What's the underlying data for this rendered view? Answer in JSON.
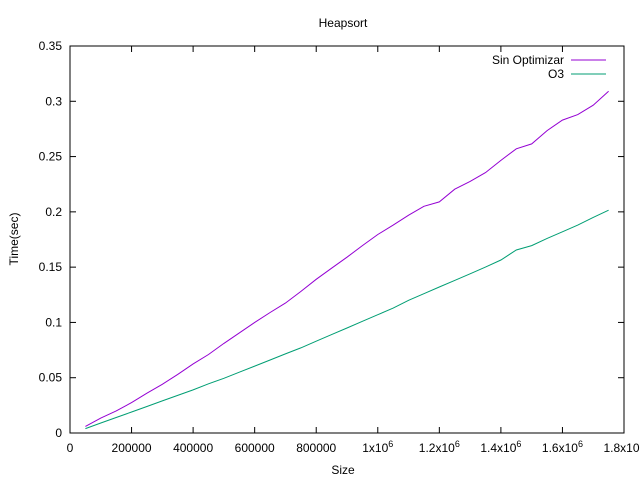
{
  "chart_data": {
    "type": "line",
    "title": "Heapsort",
    "xlabel": "Size",
    "ylabel": "Time(sec)",
    "xlim": [
      0,
      1800000
    ],
    "ylim": [
      0,
      0.35
    ],
    "grid": false,
    "legend_position": "top-right",
    "x_ticks": [
      {
        "value": 0,
        "label": "0",
        "sup": ""
      },
      {
        "value": 200000,
        "label": "200000",
        "sup": ""
      },
      {
        "value": 400000,
        "label": "400000",
        "sup": ""
      },
      {
        "value": 600000,
        "label": "600000",
        "sup": ""
      },
      {
        "value": 800000,
        "label": "800000",
        "sup": ""
      },
      {
        "value": 1000000,
        "label": "1x10",
        "sup": "6"
      },
      {
        "value": 1200000,
        "label": "1.2x10",
        "sup": "6"
      },
      {
        "value": 1400000,
        "label": "1.4x10",
        "sup": "6"
      },
      {
        "value": 1600000,
        "label": "1.6x10",
        "sup": "6"
      },
      {
        "value": 1800000,
        "label": "1.8x10",
        "sup": "6"
      }
    ],
    "y_ticks": [
      {
        "value": 0,
        "label": "0"
      },
      {
        "value": 0.05,
        "label": "0.05"
      },
      {
        "value": 0.1,
        "label": "0.1"
      },
      {
        "value": 0.15,
        "label": "0.15"
      },
      {
        "value": 0.2,
        "label": "0.2"
      },
      {
        "value": 0.25,
        "label": "0.25"
      },
      {
        "value": 0.3,
        "label": "0.3"
      },
      {
        "value": 0.35,
        "label": "0.35"
      }
    ],
    "x": [
      50000,
      100000,
      150000,
      200000,
      250000,
      300000,
      350000,
      400000,
      450000,
      500000,
      550000,
      600000,
      650000,
      700000,
      750000,
      800000,
      850000,
      900000,
      950000,
      1000000,
      1050000,
      1100000,
      1150000,
      1200000,
      1250000,
      1300000,
      1350000,
      1400000,
      1450000,
      1500000,
      1550000,
      1600000,
      1650000,
      1700000,
      1750000
    ],
    "series": [
      {
        "name": "Sin Optimizar",
        "color": "#9400d3",
        "values": [
          0.006,
          0.0135,
          0.02,
          0.0275,
          0.036,
          0.044,
          0.053,
          0.0625,
          0.071,
          0.081,
          0.0905,
          0.1,
          0.109,
          0.1175,
          0.128,
          0.139,
          0.149,
          0.159,
          0.1695,
          0.1795,
          0.188,
          0.197,
          0.205,
          0.209,
          0.2205,
          0.2275,
          0.2355,
          0.2465,
          0.257,
          0.2615,
          0.2735,
          0.283,
          0.288,
          0.2965,
          0.309
        ]
      },
      {
        "name": "O3",
        "color": "#009e73",
        "values": [
          0.004,
          0.009,
          0.014,
          0.019,
          0.024,
          0.029,
          0.034,
          0.039,
          0.0445,
          0.0495,
          0.055,
          0.0605,
          0.066,
          0.0715,
          0.077,
          0.083,
          0.089,
          0.095,
          0.101,
          0.107,
          0.113,
          0.12,
          0.126,
          0.132,
          0.138,
          0.144,
          0.15,
          0.1565,
          0.1655,
          0.1695,
          0.176,
          0.182,
          0.188,
          0.195,
          0.2015
        ]
      }
    ]
  }
}
